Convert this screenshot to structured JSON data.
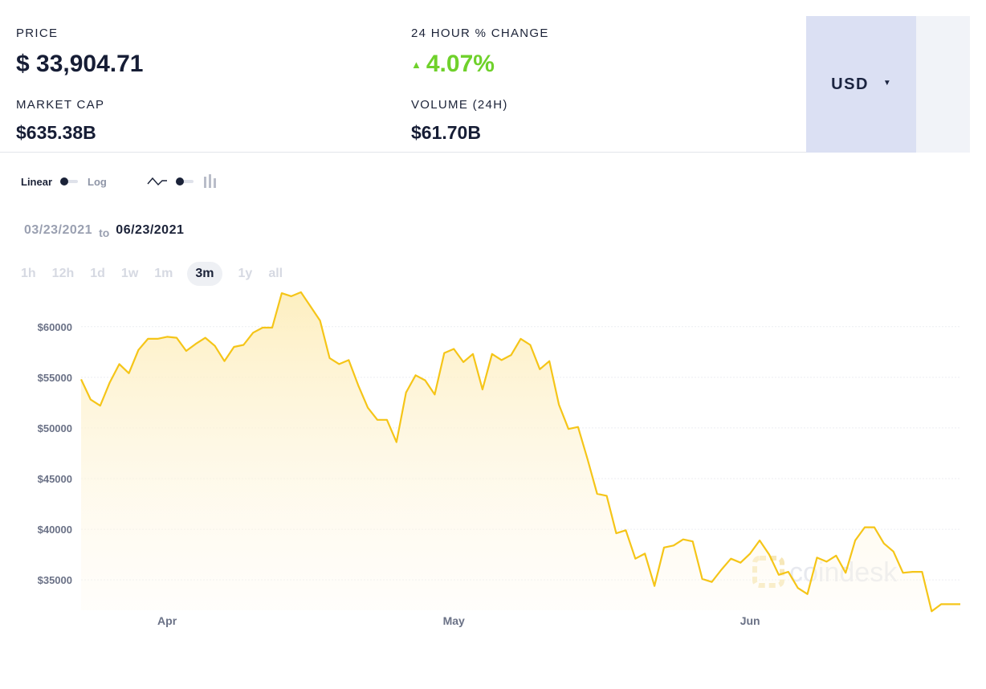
{
  "stats": {
    "price_label": "PRICE",
    "price_value": "$ 33,904.71",
    "change_label": "24 HOUR % CHANGE",
    "change_value": "4.07%",
    "change_direction": "up",
    "change_color": "#6fd12b",
    "marketcap_label": "MARKET CAP",
    "marketcap_value": "$635.38B",
    "volume_label": "VOLUME (24H)",
    "volume_value": "$61.70B"
  },
  "currency": {
    "selected": "USD",
    "caret_icon": "caret-down-icon"
  },
  "controls": {
    "scale_linear_label": "Linear",
    "scale_log_label": "Log",
    "scale_selected": "Linear",
    "chart_style_icons": [
      "line-chart-icon",
      "bar-chart-icon"
    ],
    "chart_style_selected": "line"
  },
  "date_range": {
    "from": "03/23/2021",
    "to_word": "to",
    "to": "06/23/2021"
  },
  "ranges": {
    "items": [
      "1h",
      "12h",
      "1d",
      "1w",
      "1m",
      "3m",
      "1y",
      "all"
    ],
    "active": "3m"
  },
  "watermark": {
    "text": "coindesk"
  },
  "chart_data": {
    "type": "area",
    "line_color": "#f5c518",
    "fill_color": "#fdeebd",
    "ylim": [
      32000,
      64500
    ],
    "y_ticks": [
      35000,
      40000,
      45000,
      50000,
      55000,
      60000
    ],
    "y_tick_labels": [
      "$35000",
      "$40000",
      "$45000",
      "$50000",
      "$55000",
      "$60000"
    ],
    "grid": true,
    "x_start": "2021-03-23",
    "x_tick_dates": [
      "2021-04-01",
      "2021-05-01",
      "2021-06-01"
    ],
    "x_tick_labels": [
      "Apr",
      "May",
      "Jun"
    ],
    "x": [
      "2021-03-23",
      "2021-03-24",
      "2021-03-25",
      "2021-03-26",
      "2021-03-27",
      "2021-03-28",
      "2021-03-29",
      "2021-03-30",
      "2021-03-31",
      "2021-04-01",
      "2021-04-02",
      "2021-04-03",
      "2021-04-04",
      "2021-04-05",
      "2021-04-06",
      "2021-04-07",
      "2021-04-08",
      "2021-04-09",
      "2021-04-10",
      "2021-04-11",
      "2021-04-12",
      "2021-04-13",
      "2021-04-14",
      "2021-04-15",
      "2021-04-16",
      "2021-04-17",
      "2021-04-18",
      "2021-04-19",
      "2021-04-20",
      "2021-04-21",
      "2021-04-22",
      "2021-04-23",
      "2021-04-24",
      "2021-04-25",
      "2021-04-26",
      "2021-04-27",
      "2021-04-28",
      "2021-04-29",
      "2021-04-30",
      "2021-05-01",
      "2021-05-02",
      "2021-05-03",
      "2021-05-04",
      "2021-05-05",
      "2021-05-06",
      "2021-05-07",
      "2021-05-08",
      "2021-05-09",
      "2021-05-10",
      "2021-05-11",
      "2021-05-12",
      "2021-05-13",
      "2021-05-14",
      "2021-05-15",
      "2021-05-16",
      "2021-05-17",
      "2021-05-18",
      "2021-05-19",
      "2021-05-20",
      "2021-05-21",
      "2021-05-22",
      "2021-05-23",
      "2021-05-24",
      "2021-05-25",
      "2021-05-26",
      "2021-05-27",
      "2021-05-28",
      "2021-05-29",
      "2021-05-30",
      "2021-05-31",
      "2021-06-01",
      "2021-06-02",
      "2021-06-03",
      "2021-06-04",
      "2021-06-05",
      "2021-06-06",
      "2021-06-07",
      "2021-06-08",
      "2021-06-09",
      "2021-06-10",
      "2021-06-11",
      "2021-06-12",
      "2021-06-13",
      "2021-06-14",
      "2021-06-15",
      "2021-06-16",
      "2021-06-17",
      "2021-06-18",
      "2021-06-19",
      "2021-06-20",
      "2021-06-21",
      "2021-06-22",
      "2021-06-23"
    ],
    "series": [
      {
        "values": [
          54800,
          52800,
          52200,
          54500,
          56300,
          55400,
          57700,
          58800,
          58800,
          59000,
          58900,
          57600,
          58300,
          58900,
          58100,
          56600,
          58000,
          58200,
          59400,
          59900,
          59900,
          63300,
          63000,
          63400,
          62000,
          60600,
          56900,
          56300,
          56700,
          54200,
          52000,
          50800,
          50800,
          48600,
          53500,
          55200,
          54700,
          53300,
          57400,
          57800,
          56500,
          57300,
          53800,
          57300,
          56700,
          57200,
          58800,
          58200,
          55800,
          56600,
          52300,
          49900,
          50100,
          46900,
          43500,
          43300,
          39600,
          39900,
          37100,
          37600,
          34400,
          38200,
          38400,
          39000,
          38800,
          35100,
          34800,
          36000,
          37100,
          36700,
          37600,
          38900,
          37500,
          35500,
          35800,
          34200,
          33600,
          37200,
          36800,
          37400,
          35700,
          38900,
          40200,
          40200,
          38600,
          37800,
          35700,
          35800,
          35800,
          31900,
          32600,
          32600,
          32600
        ]
      }
    ]
  }
}
